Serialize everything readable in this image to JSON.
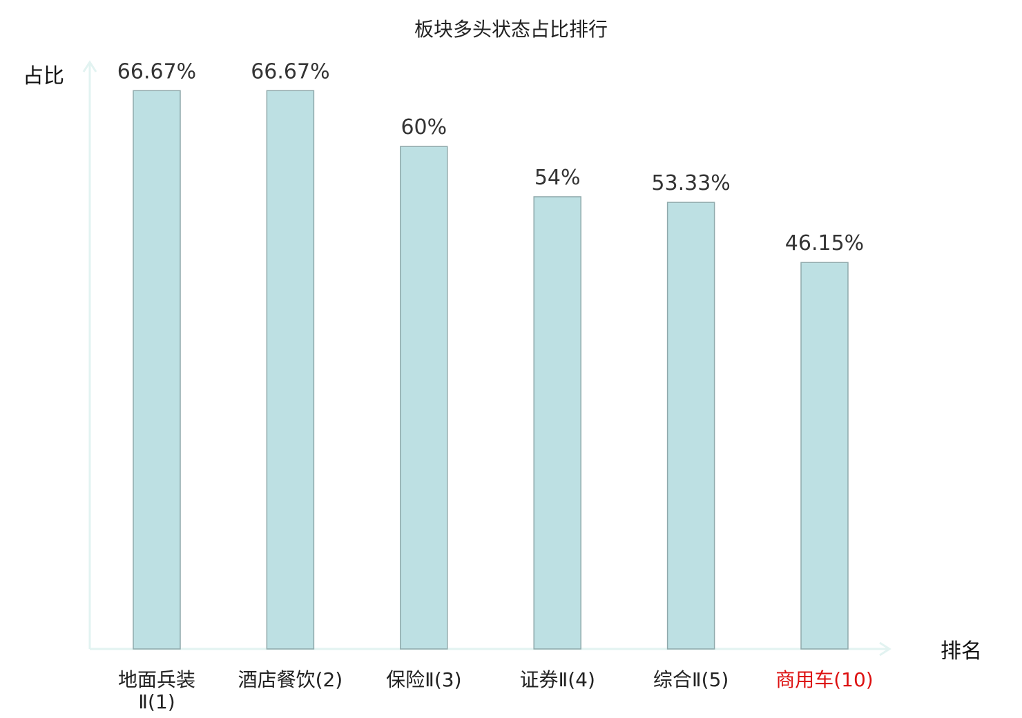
{
  "chart_data": {
    "type": "bar",
    "title": "板块多头状态占比排行",
    "ylabel": "占比",
    "xlabel": "排名",
    "ylim": [
      0,
      75
    ],
    "grid": false,
    "legend": "none",
    "categories": [
      {
        "lines": [
          "地面兵装",
          "Ⅱ(1)"
        ],
        "highlight": false
      },
      {
        "lines": [
          "酒店餐饮(2)"
        ],
        "highlight": false
      },
      {
        "lines": [
          "保险Ⅱ(3)"
        ],
        "highlight": false
      },
      {
        "lines": [
          "证券Ⅱ(4)"
        ],
        "highlight": false
      },
      {
        "lines": [
          "综合Ⅱ(5)"
        ],
        "highlight": false
      },
      {
        "lines": [
          "商用车(10)"
        ],
        "highlight": true
      }
    ],
    "values": [
      66.67,
      66.67,
      60,
      54,
      53.33,
      46.15
    ],
    "value_labels": [
      "66.67%",
      "66.67%",
      "60%",
      "54%",
      "53.33%",
      "46.15%"
    ],
    "colors": {
      "bar_fill": "#bde0e3",
      "bar_stroke": "#8fa9ab",
      "axis": "#e2f3f1",
      "label": "#222222",
      "highlight_label": "#dd1111"
    }
  }
}
